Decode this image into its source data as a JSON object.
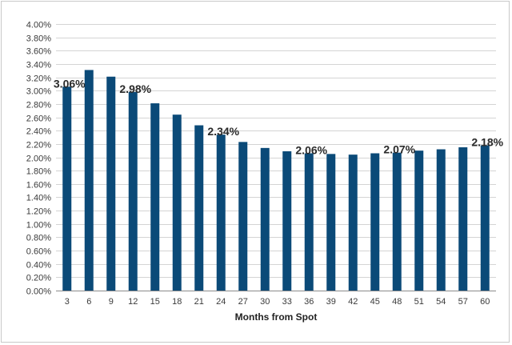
{
  "chart_data": {
    "type": "bar",
    "title": "",
    "xlabel": "Months from Spot",
    "ylabel": "",
    "categories": [
      "3",
      "6",
      "9",
      "12",
      "15",
      "18",
      "21",
      "24",
      "27",
      "30",
      "33",
      "36",
      "39",
      "42",
      "45",
      "48",
      "51",
      "54",
      "57",
      "60"
    ],
    "values": [
      3.06,
      3.31,
      3.21,
      2.98,
      2.81,
      2.64,
      2.48,
      2.34,
      2.23,
      2.14,
      2.09,
      2.06,
      2.05,
      2.04,
      2.06,
      2.07,
      2.1,
      2.12,
      2.15,
      2.18
    ],
    "ylim": [
      0,
      4.0
    ],
    "y_ticks": [
      "0.00%",
      "0.20%",
      "0.40%",
      "0.60%",
      "0.80%",
      "1.00%",
      "1.20%",
      "1.40%",
      "1.60%",
      "1.80%",
      "2.00%",
      "2.20%",
      "2.40%",
      "2.60%",
      "2.80%",
      "3.00%",
      "3.20%",
      "3.40%",
      "3.60%",
      "3.80%",
      "4.00%"
    ],
    "grid": true,
    "legend": "none",
    "bar_color": "#0b4a78",
    "data_labels": [
      {
        "category": "3",
        "text": "3.06%"
      },
      {
        "category": "12",
        "text": "2.98%"
      },
      {
        "category": "24",
        "text": "2.34%"
      },
      {
        "category": "36",
        "text": "2.06%"
      },
      {
        "category": "48",
        "text": "2.07%"
      },
      {
        "category": "60",
        "text": "2.18%"
      }
    ]
  }
}
